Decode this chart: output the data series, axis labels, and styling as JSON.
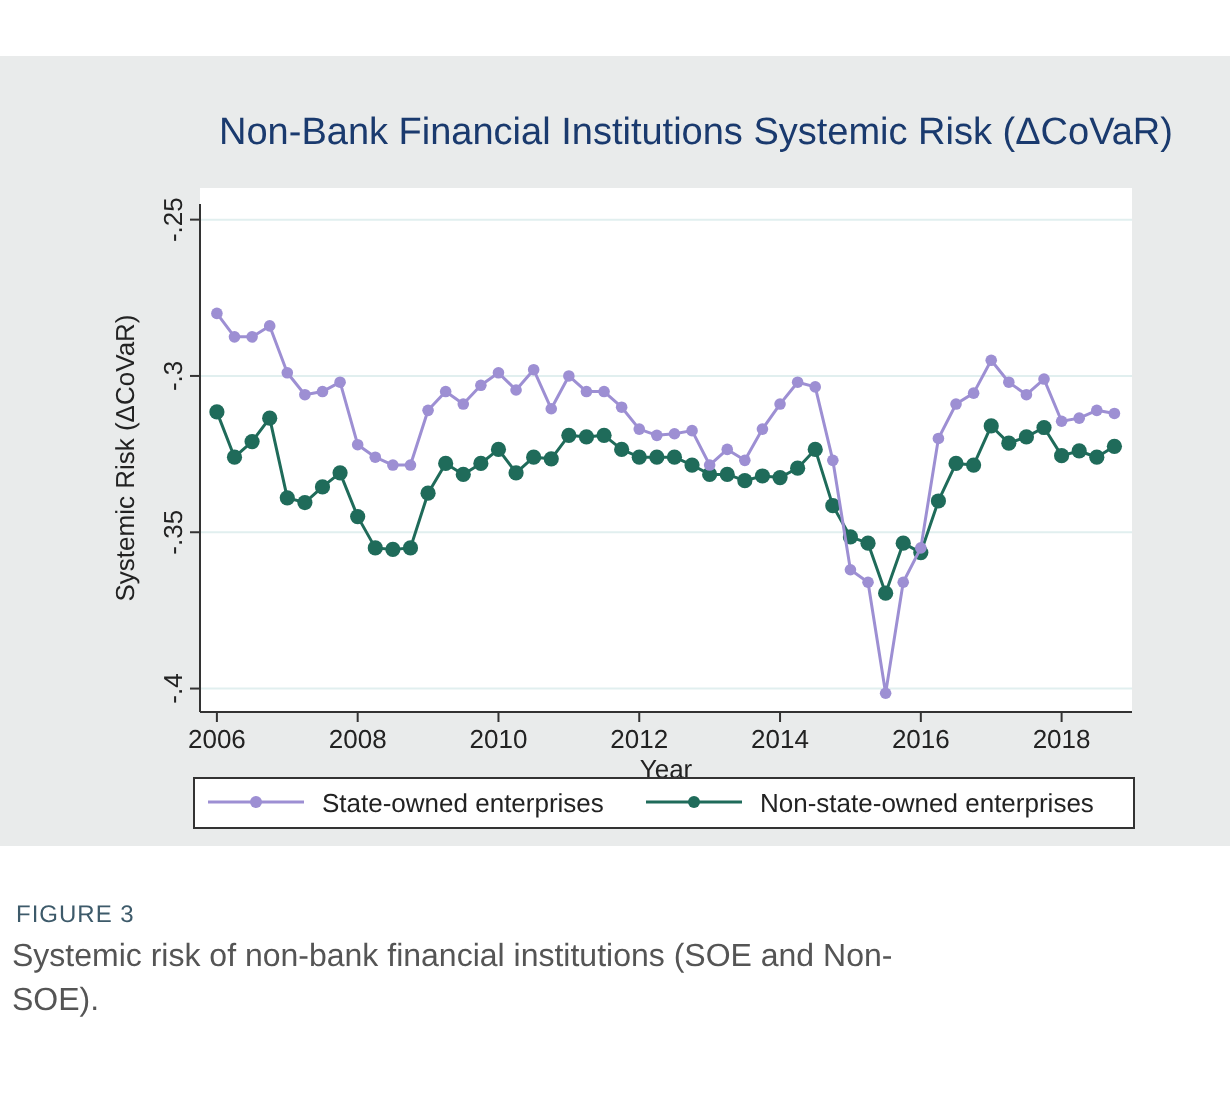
{
  "chart_data": {
    "type": "line",
    "title": "Non-Bank Financial Institutions Systemic Risk (ΔCoVaR)",
    "xlabel": "Year",
    "ylabel": "Systemic Risk (ΔCoVaR)",
    "annotations": [
      "FIGURE 3",
      "Systemic risk of non-bank financial institutions (SOE and Non-SOE)."
    ],
    "x": [
      2006,
      2006.25,
      2006.5,
      2006.75,
      2007,
      2007.25,
      2007.5,
      2007.75,
      2008,
      2008.25,
      2008.5,
      2008.75,
      2009,
      2009.25,
      2009.5,
      2009.75,
      2010,
      2010.25,
      2010.5,
      2010.75,
      2011,
      2011.25,
      2011.5,
      2011.75,
      2012,
      2012.25,
      2012.5,
      2012.75,
      2013,
      2013.25,
      2013.5,
      2013.75,
      2014,
      2014.25,
      2014.5,
      2014.75,
      2015,
      2015.25,
      2015.5,
      2015.75,
      2016,
      2016.25,
      2016.5,
      2016.75,
      2017,
      2017.25,
      2017.5,
      2017.75,
      2018,
      2018.25,
      2018.5,
      2018.75
    ],
    "series": [
      {
        "name": "State-owned enterprises",
        "color": "#9d8fd3",
        "values": [
          -0.28,
          -0.2875,
          -0.2875,
          -0.284,
          -0.299,
          -0.306,
          -0.305,
          -0.302,
          -0.322,
          -0.326,
          -0.3285,
          -0.3285,
          -0.311,
          -0.305,
          -0.309,
          -0.303,
          -0.299,
          -0.3045,
          -0.298,
          -0.3105,
          -0.3,
          -0.305,
          -0.305,
          -0.31,
          -0.317,
          -0.319,
          -0.3185,
          -0.3175,
          -0.3285,
          -0.3235,
          -0.327,
          -0.317,
          -0.309,
          -0.302,
          -0.3035,
          -0.327,
          -0.362,
          -0.366,
          -0.4015,
          -0.366,
          -0.355,
          -0.32,
          -0.309,
          -0.3055,
          -0.295,
          -0.302,
          -0.306,
          -0.301,
          -0.3145,
          -0.3135,
          -0.311,
          -0.312
        ]
      },
      {
        "name": "Non-state-owned enterprises",
        "color": "#1f6b5a",
        "values": [
          -0.3115,
          -0.326,
          -0.321,
          -0.3135,
          -0.339,
          -0.3405,
          -0.3355,
          -0.331,
          -0.345,
          -0.355,
          -0.3555,
          -0.355,
          -0.3375,
          -0.328,
          -0.3315,
          -0.328,
          -0.3235,
          -0.331,
          -0.326,
          -0.3265,
          -0.319,
          -0.3195,
          -0.319,
          -0.3235,
          -0.326,
          -0.326,
          -0.326,
          -0.3285,
          -0.3315,
          -0.3315,
          -0.3335,
          -0.332,
          -0.3325,
          -0.3295,
          -0.3235,
          -0.3415,
          -0.3515,
          -0.3535,
          -0.3695,
          -0.3535,
          -0.3565,
          -0.34,
          -0.328,
          -0.3285,
          -0.316,
          -0.3215,
          -0.3195,
          -0.3165,
          -0.3255,
          -0.324,
          -0.326,
          -0.3225
        ]
      }
    ],
    "xlim": [
      2005.76,
      2019
    ],
    "xticks": [
      2006,
      2008,
      2010,
      2012,
      2014,
      2016,
      2018
    ],
    "ylim": [
      -0.4075,
      -0.245
    ],
    "yticks": [
      {
        "value": -0.25,
        "label": "-.25"
      },
      {
        "value": -0.3,
        "label": "-.3"
      },
      {
        "value": -0.35,
        "label": "-.35"
      },
      {
        "value": -0.4,
        "label": "-.4"
      }
    ],
    "grid": "y",
    "legend": "bottom",
    "marker": "circle",
    "line_style": "solid"
  }
}
